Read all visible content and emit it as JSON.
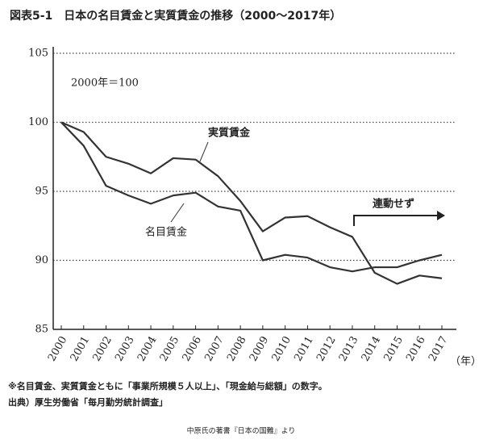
{
  "chart_data": {
    "type": "line",
    "title": "図表5-1　日本の名目賃金と実質賃金の推移（2000～2017年）",
    "annotation": "2000年＝100",
    "trend_note": "連動せず",
    "x_unit": "（年）",
    "categories": [
      "2000",
      "2001",
      "2002",
      "2003",
      "2004",
      "2005",
      "2006",
      "2007",
      "2008",
      "2009",
      "2010",
      "2011",
      "2012",
      "2013",
      "2014",
      "2015",
      "2016",
      "2017"
    ],
    "series": [
      {
        "name": "実質賃金",
        "color": "#333333",
        "values": [
          100,
          99.3,
          97.5,
          97.0,
          96.3,
          97.4,
          97.3,
          96.1,
          94.3,
          92.1,
          93.1,
          93.2,
          92.4,
          91.7,
          89.1,
          88.3,
          88.9,
          88.7
        ]
      },
      {
        "name": "名目賃金",
        "color": "#333333",
        "values": [
          100,
          98.3,
          95.4,
          94.7,
          94.1,
          94.7,
          94.9,
          93.9,
          93.6,
          90.0,
          90.4,
          90.2,
          89.5,
          89.2,
          89.5,
          89.5,
          90.0,
          90.4
        ]
      }
    ],
    "ylim": [
      85,
      105
    ],
    "yticks": [
      85,
      90,
      95,
      100,
      105
    ],
    "grid": true,
    "notes": [
      "※名目賃金、実質賃金ともに「事業所規模５人以上」、「現金給与総額」の数字。",
      "出典）厚生労働省「毎月勤労統計調査」"
    ]
  },
  "footer": "中原氏の著書『日本の国難』より"
}
